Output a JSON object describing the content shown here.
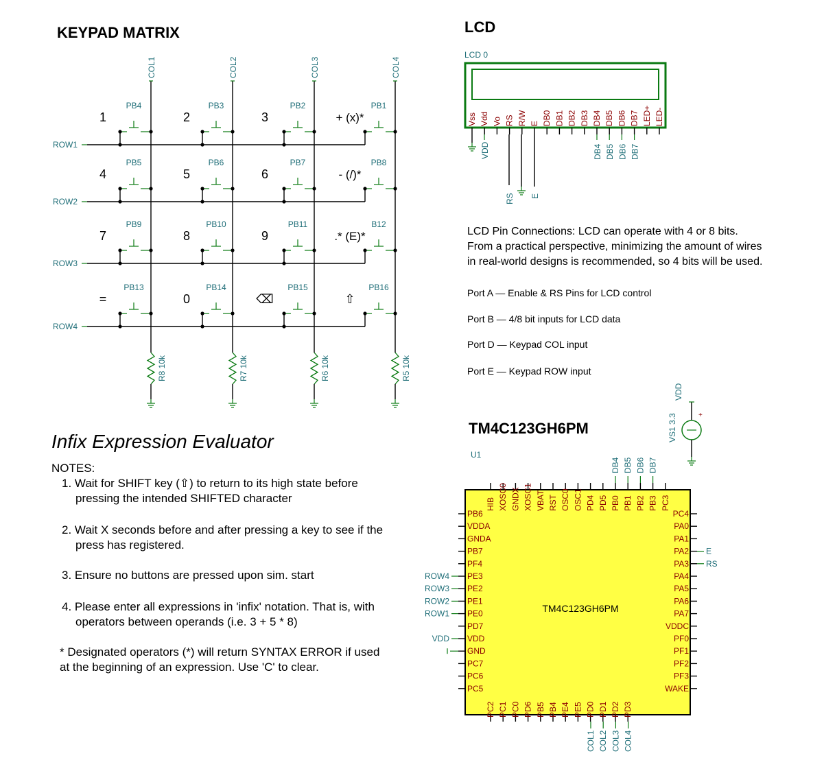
{
  "keypad": {
    "title": "KEYPAD MATRIX",
    "cols": [
      "COL1",
      "COL2",
      "COL3",
      "COL4"
    ],
    "rows": [
      "ROW1",
      "ROW2",
      "ROW3",
      "ROW4"
    ],
    "resistors": [
      "R8 10k",
      "R7 10k",
      "R6 10k",
      "R5 10k"
    ],
    "keys": [
      {
        "label": "1",
        "pb": "PB4"
      },
      {
        "label": "2",
        "pb": "PB3"
      },
      {
        "label": "3",
        "pb": "PB2"
      },
      {
        "label": "+ (x)*",
        "pb": "PB1"
      },
      {
        "label": "4",
        "pb": "PB5"
      },
      {
        "label": "5",
        "pb": "PB6"
      },
      {
        "label": "6",
        "pb": "PB7"
      },
      {
        "label": "- (/)*",
        "pb": "PB8"
      },
      {
        "label": "7",
        "pb": "PB9"
      },
      {
        "label": "8",
        "pb": "PB10"
      },
      {
        "label": "9",
        "pb": "PB11"
      },
      {
        "label": ".* (E)*",
        "pb": "B12"
      },
      {
        "label": "=",
        "pb": "PB13"
      },
      {
        "label": "0",
        "pb": "PB14"
      },
      {
        "label": "⌫",
        "pb": "PB15"
      },
      {
        "label": "⇧",
        "pb": "PB16"
      }
    ]
  },
  "evaluator": {
    "title": "Infix Expression Evaluator",
    "notes_heading": "NOTES:",
    "notes": [
      "1. Wait for SHIFT key (⇧) to return to its high state before pressing the intended SHIFTED character",
      "2. Wait X seconds before and after pressing a key to see if the press has registered.",
      "3. Ensure no buttons are pressed upon sim. start",
      "4. Please enter all expressions in 'infix' notation. That is, with operators between operands (i.e. 3 + 5 * 8)"
    ],
    "footnote": "* Designated operators (*) will return SYNTAX ERROR if used at the beginning of an expression. Use 'C' to clear."
  },
  "lcd": {
    "title": "LCD",
    "part_label": "LCD 0",
    "pins": [
      "Vss",
      "Vdd",
      "Vo",
      "RS",
      "R/W",
      "E",
      "DB0",
      "DB1",
      "DB2",
      "DB3",
      "DB4",
      "DB5",
      "DB6",
      "DB7",
      "LED+",
      "LED-"
    ],
    "vdd_net": "VDD",
    "rs_net": "RS",
    "e_net": "E",
    "db_nets": [
      "DB4",
      "DB5",
      "DB6",
      "DB7"
    ],
    "note_lines": [
      "LCD Pin Connections: LCD can operate with 4 or 8 bits.",
      "From a practical perspective, minimizing the amount of wires",
      "in real-world designs is recommended, so 4 bits will be used."
    ],
    "ports": [
      "Port A — Enable & RS Pins for LCD control",
      "Port B — 4/8 bit inputs for LCD data",
      "Port D — Keypad COL input",
      "Port E — Keypad ROW input"
    ]
  },
  "mcu": {
    "title": "TM4C123GH6PM",
    "ref": "U1",
    "body_label": "TM4C123GH6PM",
    "top_pins": [
      "HIB",
      "XOSC0",
      "GNDX",
      "XOSC1",
      "VBAT",
      "RST",
      "OSC0",
      "OSC1",
      "PD4",
      "PD5",
      "PB0",
      "PB1",
      "PB2",
      "PB3",
      "PC3"
    ],
    "top_nets": [
      "DB4",
      "DB5",
      "DB6",
      "DB7"
    ],
    "left_pins": [
      "PB6",
      "VDDA",
      "GNDA",
      "PB7",
      "PF4",
      "PE3",
      "PE2",
      "PE1",
      "PE0",
      "PD7",
      "VDD",
      "GND",
      "PC7",
      "PC6",
      "PC5"
    ],
    "left_nets": {
      "PE3": "ROW4",
      "PE2": "ROW3",
      "PE1": "ROW2",
      "PE0": "ROW1",
      "VDD": "VDD"
    },
    "right_pins": [
      "PC4",
      "PA0",
      "PA1",
      "PA2",
      "PA3",
      "PA4",
      "PA5",
      "PA6",
      "PA7",
      "VDDC",
      "PF0",
      "PF1",
      "PF2",
      "PF3",
      "WAKE"
    ],
    "right_nets": {
      "PA2": "E",
      "PA3": "RS"
    },
    "bottom_pins": [
      "PC2",
      "PC1",
      "PC0",
      "PD6",
      "PB5",
      "PB4",
      "PE4",
      "PE5",
      "PD0",
      "PD1",
      "PD2",
      "PD3"
    ],
    "bottom_nets": [
      "COL1",
      "COL2",
      "COL3",
      "COL4"
    ],
    "vsource_label": "VS1 3.3",
    "vsource_net": "VDD"
  },
  "colors": {
    "wire": "#000000",
    "label_teal": "#1f6e78",
    "pin_red": "#8b0000",
    "green": "#0a7a12",
    "chip_fill": "#ffff44"
  }
}
